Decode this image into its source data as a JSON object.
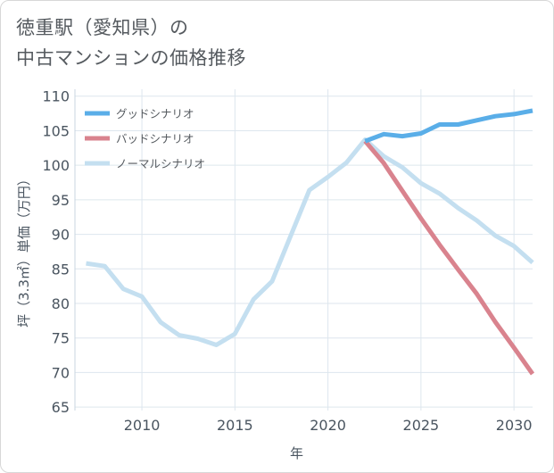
{
  "title_lines": [
    "徳重駅（愛知県）の",
    "中古マンションの価格推移"
  ],
  "chart_data": {
    "type": "line",
    "xlabel": "年",
    "ylabel": "坪（3.3㎡）単価（万円）",
    "xlim": [
      2006.4,
      2031
    ],
    "ylim": [
      64.5,
      111
    ],
    "x_ticks": [
      2010,
      2015,
      2020,
      2025,
      2030
    ],
    "y_ticks": [
      65,
      70,
      75,
      80,
      85,
      90,
      95,
      100,
      105,
      110
    ],
    "grid": true,
    "legend_position": "top-left",
    "series": [
      {
        "name": "グッドシナリオ",
        "color": "#5aaee8",
        "x": [
          2022,
          2023,
          2024,
          2025,
          2026,
          2027,
          2028,
          2029,
          2030,
          2031
        ],
        "y": [
          103.5,
          104.5,
          104.2,
          104.6,
          105.9,
          105.9,
          106.5,
          107.1,
          107.4,
          107.9
        ]
      },
      {
        "name": "バッドシナリオ",
        "color": "#d9838e",
        "x": [
          2022,
          2023,
          2024,
          2025,
          2026,
          2027,
          2028,
          2029,
          2030,
          2031
        ],
        "y": [
          103.5,
          100.3,
          96.3,
          92.3,
          88.5,
          84.9,
          81.4,
          77.3,
          73.6,
          69.8
        ]
      },
      {
        "name": "ノーマルシナリオ",
        "color": "#c4dff0",
        "x": [
          2007,
          2008,
          2009,
          2010,
          2011,
          2012,
          2013,
          2014,
          2015,
          2016,
          2017,
          2018,
          2019,
          2020,
          2021,
          2022,
          2023,
          2024,
          2025,
          2026,
          2027,
          2028,
          2029,
          2030,
          2031
        ],
        "y": [
          85.8,
          85.4,
          82.1,
          81.0,
          77.3,
          75.4,
          74.9,
          74.0,
          75.6,
          80.6,
          83.2,
          89.8,
          96.4,
          98.3,
          100.4,
          103.7,
          101.3,
          99.7,
          97.4,
          95.9,
          93.8,
          92.0,
          89.8,
          88.3,
          85.9
        ]
      }
    ]
  }
}
